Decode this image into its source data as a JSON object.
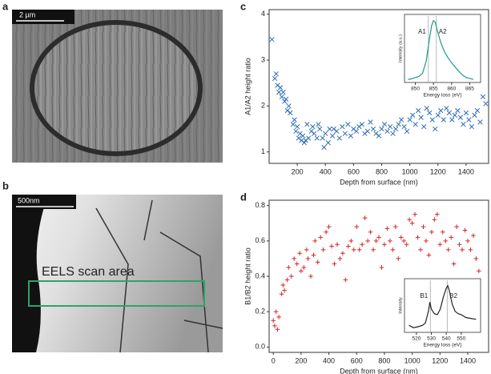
{
  "panels": {
    "a": {
      "label": "a",
      "scale_bar": "2 µm"
    },
    "b": {
      "label": "b",
      "scale_bar": "500nm",
      "annotation": "EELS scan area"
    }
  },
  "chart_data": [
    {
      "type": "scatter",
      "panel_label": "c",
      "marker": "x",
      "color": "#2e6db4",
      "x_label": "Depth from surface (nm)",
      "y_label": "A1/A2 height ratio",
      "xlim": [
        0,
        1560
      ],
      "ylim": [
        0.75,
        4.1
      ],
      "xticks": [
        200,
        400,
        600,
        800,
        1000,
        1200,
        1400
      ],
      "yticks": [
        1,
        2,
        3,
        4
      ],
      "x": [
        20,
        40,
        50,
        60,
        70,
        80,
        90,
        100,
        110,
        120,
        130,
        140,
        150,
        170,
        180,
        190,
        200,
        210,
        220,
        230,
        240,
        250,
        260,
        270,
        280,
        300,
        310,
        320,
        340,
        350,
        360,
        380,
        390,
        400,
        420,
        430,
        450,
        460,
        480,
        500,
        520,
        540,
        560,
        580,
        600,
        620,
        640,
        660,
        680,
        700,
        720,
        740,
        760,
        780,
        800,
        820,
        840,
        860,
        880,
        900,
        920,
        940,
        960,
        980,
        1000,
        1020,
        1040,
        1060,
        1080,
        1100,
        1120,
        1140,
        1160,
        1180,
        1200,
        1220,
        1240,
        1260,
        1280,
        1300,
        1320,
        1340,
        1360,
        1380,
        1400,
        1420,
        1440,
        1460,
        1480,
        1500,
        1520,
        1540
      ],
      "values": [
        3.45,
        2.6,
        2.7,
        2.45,
        2.3,
        2.4,
        2.2,
        2.3,
        2.1,
        2.15,
        1.9,
        2.0,
        1.85,
        1.6,
        1.7,
        1.45,
        1.55,
        1.3,
        1.4,
        1.25,
        1.35,
        1.2,
        1.25,
        1.6,
        1.3,
        1.45,
        1.55,
        1.4,
        1.3,
        1.6,
        1.5,
        1.3,
        1.1,
        1.4,
        1.2,
        1.5,
        1.35,
        1.5,
        1.45,
        1.3,
        1.55,
        1.4,
        1.6,
        1.35,
        1.5,
        1.45,
        1.55,
        1.6,
        1.4,
        1.45,
        1.65,
        1.5,
        1.4,
        1.35,
        1.5,
        1.6,
        1.45,
        1.55,
        1.4,
        1.5,
        1.6,
        1.7,
        1.55,
        1.45,
        1.7,
        1.8,
        1.6,
        1.9,
        1.75,
        1.55,
        1.95,
        1.85,
        1.7,
        1.5,
        1.8,
        1.9,
        1.7,
        1.95,
        1.85,
        1.7,
        1.8,
        1.9,
        1.75,
        1.6,
        1.85,
        1.7,
        1.55,
        1.8,
        1.9,
        1.65,
        2.2,
        2.05
      ],
      "inset": {
        "type": "line",
        "color": "#1a9c8a",
        "x_label": "Energy loss (eV)",
        "y_label": "Intensity (a.u.)",
        "xlim": [
          847,
          868
        ],
        "ylim": [
          0,
          1.1
        ],
        "xticks": [
          850,
          855,
          860,
          865
        ],
        "x": [
          848,
          849,
          850,
          851,
          852,
          853,
          854,
          854.5,
          855,
          855.5,
          856,
          857,
          858,
          859,
          860,
          861,
          862,
          863,
          864,
          866
        ],
        "values": [
          0.05,
          0.06,
          0.08,
          0.1,
          0.15,
          0.35,
          0.75,
          0.92,
          1,
          0.97,
          0.85,
          0.65,
          0.5,
          0.4,
          0.32,
          0.25,
          0.18,
          0.12,
          0.08,
          0.05
        ],
        "reference_lines": [
          {
            "value": 853.6,
            "label": "A1"
          },
          {
            "value": 855.8,
            "label": "A2"
          }
        ]
      }
    },
    {
      "type": "scatter",
      "panel_label": "d",
      "marker": "+",
      "color": "#d62728",
      "x_label": "Depth from surface (nm)",
      "y_label": "B1/B2 height ratio",
      "xlim": [
        -30,
        1550
      ],
      "ylim": [
        -0.03,
        0.83
      ],
      "xticks": [
        0,
        200,
        400,
        600,
        800,
        1000,
        1200,
        1400
      ],
      "yticks": [
        {
          "value": 0,
          "label": "0.0"
        },
        0.2,
        0.4,
        0.6,
        0.8
      ],
      "x": [
        0,
        10,
        20,
        30,
        40,
        60,
        70,
        80,
        100,
        110,
        130,
        150,
        170,
        190,
        200,
        220,
        240,
        250,
        270,
        290,
        300,
        320,
        340,
        360,
        380,
        400,
        420,
        440,
        460,
        480,
        500,
        520,
        540,
        560,
        580,
        600,
        620,
        640,
        660,
        680,
        700,
        720,
        740,
        760,
        780,
        800,
        820,
        840,
        860,
        880,
        900,
        920,
        940,
        960,
        980,
        1000,
        1020,
        1040,
        1060,
        1080,
        1100,
        1120,
        1140,
        1160,
        1180,
        1200,
        1220,
        1240,
        1260,
        1280,
        1300,
        1320,
        1340,
        1360,
        1380,
        1400,
        1420,
        1440,
        1460,
        1480
      ],
      "values": [
        0.15,
        0.12,
        0.2,
        0.1,
        0.17,
        0.3,
        0.35,
        0.32,
        0.38,
        0.45,
        0.4,
        0.5,
        0.47,
        0.53,
        0.43,
        0.45,
        0.55,
        0.5,
        0.4,
        0.52,
        0.6,
        0.48,
        0.62,
        0.55,
        0.65,
        0.68,
        0.57,
        0.47,
        0.58,
        0.5,
        0.53,
        0.38,
        0.57,
        0.6,
        0.55,
        0.68,
        0.55,
        0.58,
        0.73,
        0.6,
        0.65,
        0.55,
        0.6,
        0.62,
        0.45,
        0.58,
        0.67,
        0.6,
        0.55,
        0.68,
        0.5,
        0.62,
        0.6,
        0.58,
        0.72,
        0.7,
        0.75,
        0.62,
        0.55,
        0.68,
        0.6,
        0.52,
        0.65,
        0.72,
        0.75,
        0.58,
        0.65,
        0.6,
        0.55,
        0.62,
        0.47,
        0.68,
        0.58,
        0.55,
        0.66,
        0.6,
        0.55,
        0.63,
        0.5,
        0.43
      ],
      "inset": {
        "type": "line",
        "color": "#222222",
        "x_label": "Energy loss (eV)",
        "y_label": "Intensity",
        "xlim": [
          512,
          563
        ],
        "ylim": [
          0,
          1.15
        ],
        "xticks": [
          520,
          530,
          540,
          550
        ],
        "x": [
          515,
          518,
          521,
          524,
          526,
          528,
          529,
          530,
          532,
          534,
          536,
          538,
          540,
          541,
          542,
          544,
          546,
          548,
          550,
          553,
          556,
          560
        ],
        "values": [
          0.15,
          0.1,
          0.12,
          0.15,
          0.2,
          0.45,
          0.65,
          0.5,
          0.4,
          0.38,
          0.5,
          0.75,
          0.95,
          1,
          0.9,
          0.6,
          0.45,
          0.4,
          0.38,
          0.32,
          0.3,
          0.28
        ],
        "reference_lines": [
          {
            "value": 529.3,
            "label": "B1"
          },
          {
            "value": 540.6,
            "label": "B2"
          }
        ]
      }
    }
  ]
}
